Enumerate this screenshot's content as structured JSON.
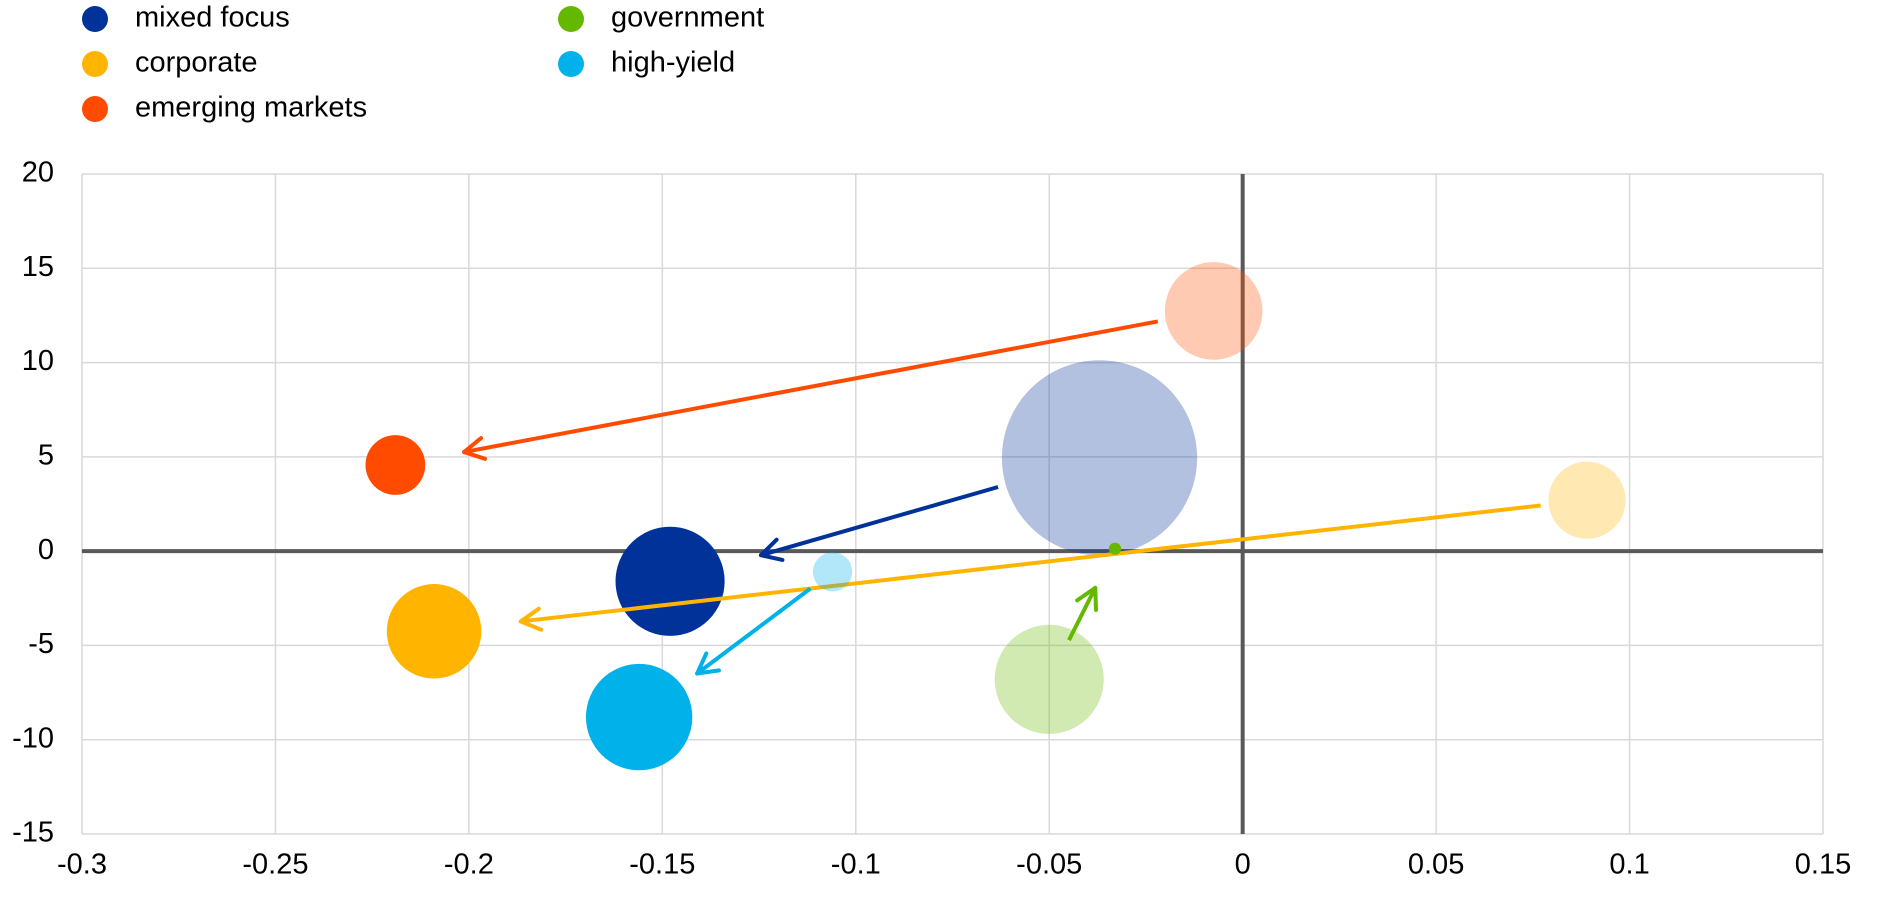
{
  "chart_data": {
    "type": "bubble",
    "series": [
      {
        "name": "mixed focus",
        "color": "#003299",
        "x": [
          -0.037,
          -0.148
        ],
        "values": [
          4.95,
          -1.6
        ],
        "sizes": [
          64,
          20
        ]
      },
      {
        "name": "corporate",
        "color": "#ffb400",
        "x": [
          0.089,
          -0.209
        ],
        "values": [
          2.7,
          -4.25
        ],
        "sizes": [
          10,
          15
        ]
      },
      {
        "name": "emerging markets",
        "color": "#ff4b00",
        "x": [
          -0.0075,
          -0.219
        ],
        "values": [
          12.74,
          4.57
        ],
        "sizes": [
          16,
          6
        ]
      },
      {
        "name": "government",
        "color": "#65b800",
        "x": [
          -0.05,
          -0.033
        ],
        "values": [
          -6.8,
          0.13
        ],
        "sizes": [
          20,
          0.25
        ]
      },
      {
        "name": "high-yield",
        "color": "#00b1ea",
        "x": [
          -0.106,
          -0.156
        ],
        "values": [
          -1.1,
          -8.8
        ],
        "sizes": [
          2.6,
          19
        ]
      }
    ],
    "xlim": [
      -0.3,
      0.15
    ],
    "xticks": [
      -0.3,
      -0.25,
      -0.2,
      -0.15,
      -0.1,
      -0.05,
      0,
      0.05,
      0.1,
      0.15
    ],
    "ylim": [
      -15,
      20
    ],
    "yticks": [
      -15,
      -10,
      -5,
      0,
      5,
      10,
      15,
      20
    ],
    "grid": true
  }
}
